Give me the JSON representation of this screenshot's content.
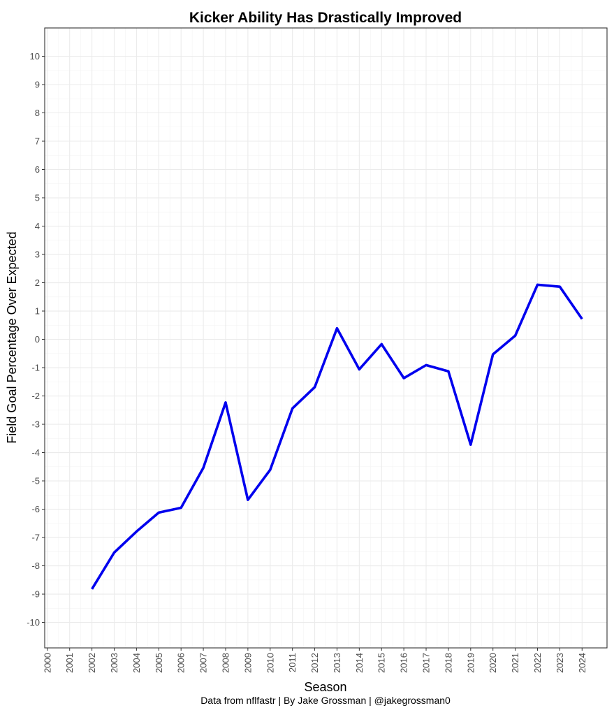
{
  "chart_data": {
    "type": "line",
    "title": "Kicker Ability Has Drastically Improved",
    "xlabel": "Season",
    "ylabel": "Field Goal Percentage Over Expected",
    "caption": "Data from nflfastr | By Jake Grossman | @jakegrossman0",
    "x_ticks": [
      2000,
      2001,
      2002,
      2003,
      2004,
      2005,
      2006,
      2007,
      2008,
      2009,
      2010,
      2011,
      2012,
      2013,
      2014,
      2015,
      2016,
      2017,
      2018,
      2019,
      2020,
      2021,
      2022,
      2023,
      2024
    ],
    "y_ticks": [
      10,
      9,
      8,
      7,
      6,
      5,
      4,
      3,
      2,
      1,
      0,
      -1,
      -2,
      -3,
      -4,
      -5,
      -6,
      -7,
      -8,
      -9,
      -10
    ],
    "xlim": [
      1999.88,
      2025.12
    ],
    "ylim": [
      -10.9,
      11.0
    ],
    "grid": true,
    "line_color": "#0000ee",
    "series": [
      {
        "x": [
          2002,
          2003,
          2004,
          2005,
          2006,
          2007,
          2008,
          2009,
          2010,
          2011,
          2012,
          2013,
          2014,
          2015,
          2016,
          2017,
          2018,
          2019,
          2020,
          2021,
          2022,
          2023,
          2024
        ],
        "values": [
          -8.82,
          -7.53,
          -6.79,
          -6.12,
          -5.95,
          -4.54,
          -2.23,
          -5.67,
          -4.61,
          -2.44,
          -1.69,
          0.39,
          -1.06,
          -0.17,
          -1.37,
          -0.91,
          -1.13,
          -3.72,
          -0.53,
          0.13,
          1.93,
          1.86,
          0.72
        ]
      }
    ]
  }
}
